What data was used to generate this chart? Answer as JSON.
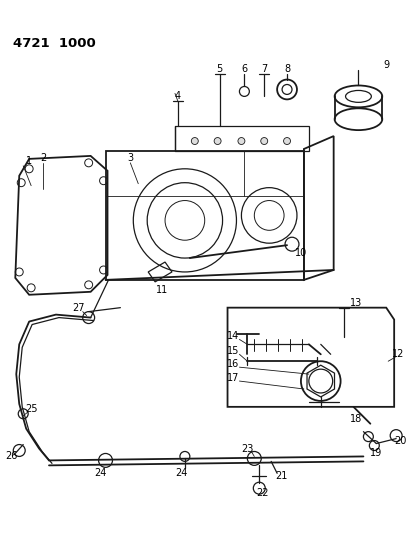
{
  "title": "4721  1000",
  "bg_color": "#ffffff",
  "line_color": "#1a1a1a",
  "fig_width": 4.08,
  "fig_height": 5.33,
  "dpi": 100
}
